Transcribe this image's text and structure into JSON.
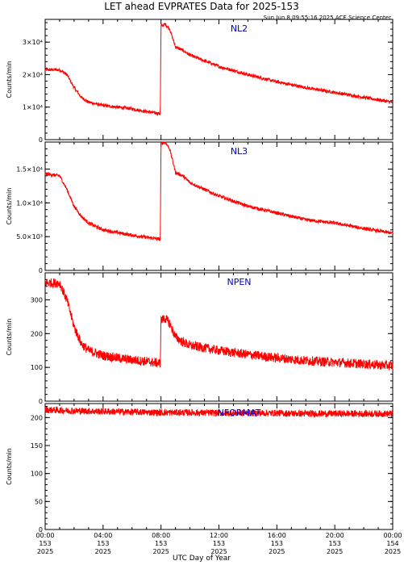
{
  "title": "LET ahead EVPRATES Data for 2025-153",
  "subtitle": "Sun Jun  8 09:55:16 2025 ACE Science Center",
  "xlabel": "UTC Day of Year",
  "colors": {
    "series": "#ff0000",
    "label": "#0000cc",
    "axis": "#000000"
  },
  "x_ticks": [
    {
      "l1": "00:00",
      "l2": "153",
      "l3": "2025"
    },
    {
      "l1": "04:00",
      "l2": "153",
      "l3": "2025"
    },
    {
      "l1": "08:00",
      "l2": "153",
      "l3": "2025"
    },
    {
      "l1": "12:00",
      "l2": "153",
      "l3": "2025"
    },
    {
      "l1": "16:00",
      "l2": "153",
      "l3": "2025"
    },
    {
      "l1": "20:00",
      "l2": "153",
      "l3": "2025"
    },
    {
      "l1": "00:00",
      "l2": "154",
      "l3": "2025"
    }
  ],
  "chart_data": [
    {
      "type": "line",
      "series_label": "NL2",
      "ylabel": "Counts/min",
      "ylim": [
        0,
        37000
      ],
      "y_ticks": [
        {
          "value": 0,
          "label": "0"
        },
        {
          "value": 10000,
          "label": "1×10⁴"
        },
        {
          "value": 20000,
          "label": "2×10⁴"
        },
        {
          "value": 30000,
          "label": "3×10⁴"
        }
      ],
      "xlim_hours": [
        0,
        24
      ],
      "x_hours": [
        0,
        1,
        1.5,
        2,
        2.5,
        3,
        4,
        5,
        6,
        7,
        7.95,
        8.0,
        8.3,
        8.6,
        9,
        9.5,
        10,
        12,
        14,
        16,
        18,
        20,
        22,
        24
      ],
      "values": [
        21500,
        21500,
        20000,
        16000,
        13000,
        11500,
        10500,
        10000,
        9500,
        8600,
        8000,
        35000,
        35500,
        34000,
        28500,
        27500,
        26000,
        22500,
        20000,
        17800,
        16000,
        14500,
        13000,
        11500
      ],
      "noise": 500
    },
    {
      "type": "line",
      "series_label": "NL3",
      "ylabel": "Counts/min",
      "ylim": [
        0,
        19000
      ],
      "y_ticks": [
        {
          "value": 0,
          "label": "0"
        },
        {
          "value": 5000,
          "label": "5.0×10³"
        },
        {
          "value": 10000,
          "label": "1.0×10⁴"
        },
        {
          "value": 15000,
          "label": "1.5×10⁴"
        }
      ],
      "xlim_hours": [
        0,
        24
      ],
      "x_hours": [
        0,
        1,
        1.5,
        2,
        2.5,
        3,
        4,
        5,
        6,
        7,
        7.95,
        8.0,
        8.3,
        8.6,
        9,
        9.5,
        10,
        12,
        14,
        16,
        18,
        20,
        22,
        24
      ],
      "values": [
        14300,
        14000,
        12000,
        9500,
        8000,
        7000,
        6000,
        5600,
        5200,
        4900,
        4600,
        18800,
        19000,
        18000,
        14500,
        14000,
        13000,
        11000,
        9500,
        8500,
        7500,
        7000,
        6200,
        5500
      ],
      "noise": 250
    },
    {
      "type": "line",
      "series_label": "NPEN",
      "ylabel": "Counts/min",
      "ylim": [
        0,
        380
      ],
      "y_ticks": [
        {
          "value": 0,
          "label": "0"
        },
        {
          "value": 100,
          "label": "100"
        },
        {
          "value": 200,
          "label": "200"
        },
        {
          "value": 300,
          "label": "300"
        }
      ],
      "xlim_hours": [
        0,
        24
      ],
      "x_hours": [
        0,
        1,
        1.5,
        2,
        2.5,
        3,
        4,
        5,
        6,
        7,
        7.95,
        8.0,
        8.3,
        8.6,
        9,
        9.5,
        10,
        12,
        14,
        16,
        18,
        20,
        22,
        24
      ],
      "values": [
        350,
        350,
        300,
        220,
        170,
        150,
        135,
        128,
        122,
        118,
        112,
        240,
        245,
        230,
        190,
        175,
        165,
        150,
        138,
        128,
        120,
        115,
        110,
        105
      ],
      "noise": 14
    },
    {
      "type": "line",
      "series_label": "NFORMAT",
      "ylabel": "Counts/min",
      "ylim": [
        0,
        225
      ],
      "y_ticks": [
        {
          "value": 0,
          "label": "0"
        },
        {
          "value": 50,
          "label": "50"
        },
        {
          "value": 100,
          "label": "100"
        },
        {
          "value": 150,
          "label": "150"
        },
        {
          "value": 200,
          "label": "200"
        }
      ],
      "xlim_hours": [
        0,
        24
      ],
      "x_hours": [
        0,
        2,
        4,
        6,
        8,
        10,
        12,
        14,
        16,
        18,
        20,
        22,
        24
      ],
      "values": [
        214,
        212,
        211,
        210,
        209,
        209,
        208,
        208,
        208,
        207,
        207,
        207,
        207
      ],
      "noise": 6
    }
  ]
}
